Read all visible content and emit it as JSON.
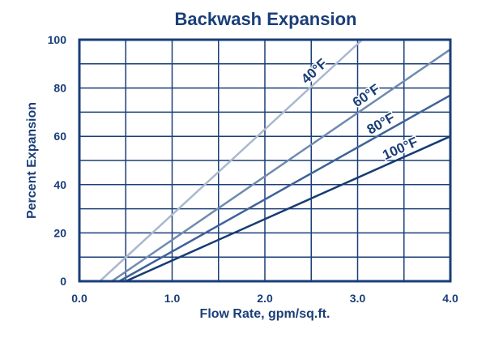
{
  "chart_data": {
    "type": "line",
    "title": "Backwash Expansion",
    "xlabel": "Flow Rate, gpm/sq.ft.",
    "ylabel": "Percent Expansion",
    "xlim": [
      0,
      4
    ],
    "ylim": [
      0,
      100
    ],
    "x_ticks": [
      "0.0",
      "1.0",
      "2.0",
      "3.0",
      "4.0"
    ],
    "y_ticks": [
      "0",
      "20",
      "40",
      "60",
      "80",
      "100"
    ],
    "grid": true,
    "legend": "inline labels along lines",
    "series": [
      {
        "name": "40°F",
        "color": "#a9b8cf",
        "x": [
          0.22,
          3.05
        ],
        "y": [
          0,
          100
        ]
      },
      {
        "name": "60°F",
        "color": "#6e8ab0",
        "x": [
          0.35,
          4.0
        ],
        "y": [
          0,
          96
        ]
      },
      {
        "name": "80°F",
        "color": "#3f6299",
        "x": [
          0.43,
          4.0
        ],
        "y": [
          0,
          77
        ]
      },
      {
        "name": "100°F",
        "color": "#163b74",
        "x": [
          0.5,
          4.0
        ],
        "y": [
          0,
          60
        ]
      }
    ]
  }
}
